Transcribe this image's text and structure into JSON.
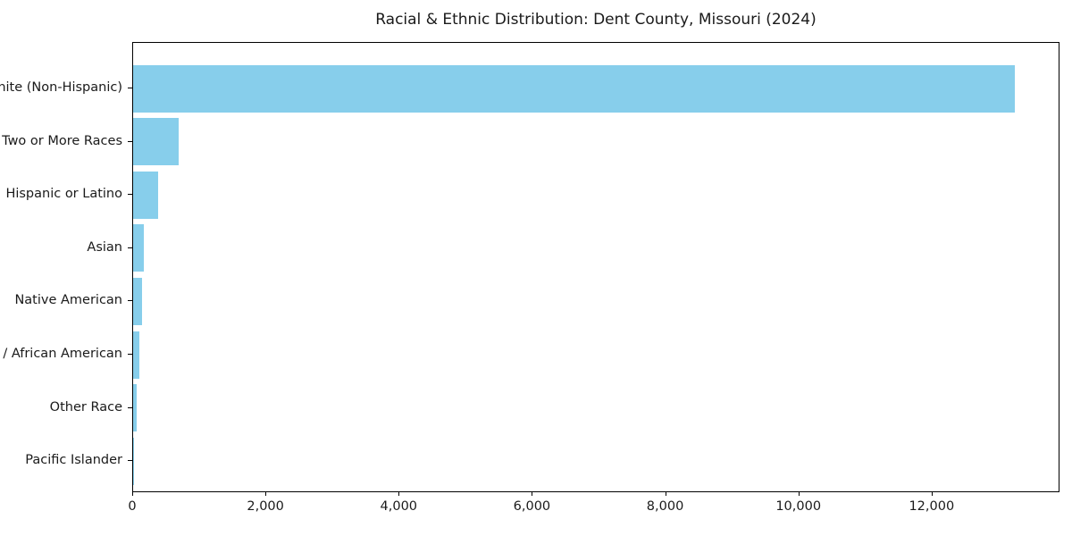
{
  "title": "Racial & Ethnic Distribution: Dent County, Missouri (2024)",
  "colors": {
    "bar": "#87CEEB",
    "frame": "#000000",
    "text": "#1a1a1a",
    "background": "#ffffff"
  },
  "chart_data": {
    "type": "bar",
    "orientation": "horizontal",
    "title": "Racial & Ethnic Distribution: Dent County, Missouri (2024)",
    "xlabel": "",
    "ylabel": "",
    "categories": [
      "White (Non-Hispanic)",
      "Two or More Races",
      "Hispanic or Latino",
      "Asian",
      "Native American",
      "Black / African American",
      "Other Race",
      "Pacific Islander"
    ],
    "values": [
      13255,
      690,
      380,
      155,
      130,
      90,
      50,
      5
    ],
    "xlim": [
      0,
      13920
    ],
    "xticks": [
      0,
      2000,
      4000,
      6000,
      8000,
      10000,
      12000
    ],
    "xtick_labels": [
      "0",
      "2,000",
      "4,000",
      "6,000",
      "8,000",
      "10,000",
      "12,000"
    ],
    "grid": false,
    "legend": false,
    "bar_color": "#87CEEB"
  }
}
